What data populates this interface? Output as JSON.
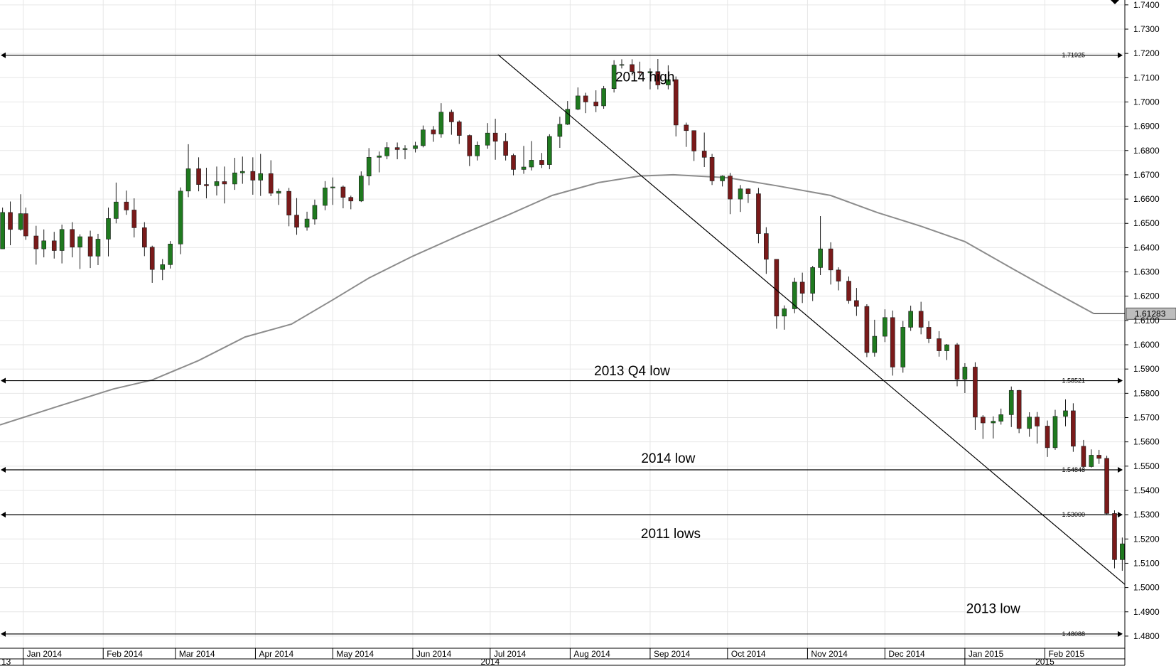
{
  "chart_data": {
    "type": "candlestick",
    "y_axis": {
      "min": 1.475,
      "max": 1.742,
      "position": "right",
      "ticks": [
        "1.7400",
        "1.7300",
        "1.7200",
        "1.7100",
        "1.7000",
        "1.6900",
        "1.6800",
        "1.6700",
        "1.6600",
        "1.6500",
        "1.6400",
        "1.6300",
        "1.6200",
        "1.6100",
        "1.6000",
        "1.5900",
        "1.5800",
        "1.5700",
        "1.5600",
        "1.5500",
        "1.5400",
        "1.5300",
        "1.5200",
        "1.5100",
        "1.5000",
        "1.4900",
        "1.4800"
      ]
    },
    "x_axis": {
      "start": "2013-12-23",
      "end": "2015-03-04",
      "month_labels": [
        {
          "label": "Jan 2014",
          "date": "2014-01-01"
        },
        {
          "label": "Feb 2014",
          "date": "2014-02-01"
        },
        {
          "label": "Mar 2014",
          "date": "2014-03-01"
        },
        {
          "label": "Apr 2014",
          "date": "2014-04-01"
        },
        {
          "label": "May 2014",
          "date": "2014-05-01"
        },
        {
          "label": "Jun 2014",
          "date": "2014-06-01"
        },
        {
          "label": "Jul 2014",
          "date": "2014-07-01"
        },
        {
          "label": "Aug 2014",
          "date": "2014-08-01"
        },
        {
          "label": "Sep 2014",
          "date": "2014-09-01"
        },
        {
          "label": "Oct 2014",
          "date": "2014-10-01"
        },
        {
          "label": "Nov 2014",
          "date": "2014-11-01"
        },
        {
          "label": "Dec 2014",
          "date": "2014-12-01"
        },
        {
          "label": "Jan 2015",
          "date": "2015-01-01"
        },
        {
          "label": "Feb 2015",
          "date": "2015-02-01"
        }
      ],
      "year_labels": [
        {
          "label": "2014",
          "date": "2014-07-01"
        },
        {
          "label": "2015",
          "date": "2015-02-01"
        }
      ],
      "left_edge_label": "13"
    },
    "levels": [
      {
        "value": 1.71925,
        "tag": "1.71925",
        "annotation": "2014 high",
        "annotation_date": "2014-08-30",
        "annotation_y": 1.7105
      },
      {
        "value": 1.58521,
        "tag": "1.58521",
        "annotation": "2013 Q4 low",
        "annotation_date": "2014-08-25",
        "annotation_y": 1.5895
      },
      {
        "value": 1.54848,
        "tag": "1.54848",
        "annotation": "2014 low",
        "annotation_date": "2014-09-08",
        "annotation_y": 1.5535
      },
      {
        "value": 1.53,
        "tag": "1.53000",
        "annotation": "2011 lows",
        "annotation_date": "2014-09-09",
        "annotation_y": 1.5225
      },
      {
        "value": 1.48088,
        "tag": "1.48088",
        "annotation": "2013 low",
        "annotation_date": "2015-01-12",
        "annotation_y": 1.4915
      }
    ],
    "trendline": {
      "start": {
        "date": "2014-07-04",
        "value": 1.7195
      },
      "end": {
        "date": "2015-03-04",
        "value": 1.5013
      }
    },
    "moving_average": {
      "points": [
        [
          "2013-12-23",
          1.567
        ],
        [
          "2014-01-15",
          1.5748
        ],
        [
          "2014-02-05",
          1.5818
        ],
        [
          "2014-02-20",
          1.5855
        ],
        [
          "2014-03-10",
          1.5935
        ],
        [
          "2014-03-28",
          1.6032
        ],
        [
          "2014-04-15",
          1.6085
        ],
        [
          "2014-05-01",
          1.6185
        ],
        [
          "2014-05-15",
          1.6275
        ],
        [
          "2014-06-01",
          1.6365
        ],
        [
          "2014-06-20",
          1.6455
        ],
        [
          "2014-07-08",
          1.6535
        ],
        [
          "2014-07-25",
          1.6615
        ],
        [
          "2014-08-12",
          1.6668
        ],
        [
          "2014-08-28",
          1.6695
        ],
        [
          "2014-09-10",
          1.67
        ],
        [
          "2014-10-01",
          1.6688
        ],
        [
          "2014-10-20",
          1.6655
        ],
        [
          "2014-11-10",
          1.6615
        ],
        [
          "2014-11-28",
          1.6545
        ],
        [
          "2014-12-15",
          1.6488
        ],
        [
          "2015-01-01",
          1.6425
        ],
        [
          "2015-01-20",
          1.631
        ],
        [
          "2015-02-05",
          1.6215
        ],
        [
          "2015-02-20",
          1.6128
        ]
      ],
      "last_value_tag": "1.61283"
    },
    "candles": [
      [
        "2013-12-24",
        1.6395,
        1.6545,
        1.6395,
        1.6565
      ],
      [
        "2013-12-27",
        1.6545,
        1.6475,
        1.641,
        1.659
      ],
      [
        "2013-12-31",
        1.6475,
        1.654,
        1.647,
        1.662
      ],
      [
        "2014-01-02",
        1.654,
        1.6448,
        1.6432,
        1.6565
      ],
      [
        "2014-01-06",
        1.6448,
        1.6395,
        1.633,
        1.649
      ],
      [
        "2014-01-09",
        1.6395,
        1.6428,
        1.636,
        1.6475
      ],
      [
        "2014-01-13",
        1.6428,
        1.6388,
        1.6355,
        1.6465
      ],
      [
        "2014-01-16",
        1.6388,
        1.6475,
        1.6335,
        1.6495
      ],
      [
        "2014-01-20",
        1.6475,
        1.6402,
        1.636,
        1.6505
      ],
      [
        "2014-01-23",
        1.6402,
        1.6445,
        1.6312,
        1.6455
      ],
      [
        "2014-01-27",
        1.6445,
        1.6365,
        1.6316,
        1.647
      ],
      [
        "2014-01-30",
        1.6365,
        1.6435,
        1.6328,
        1.6457
      ],
      [
        "2014-02-03",
        1.6435,
        1.652,
        1.6364,
        1.6565
      ],
      [
        "2014-02-06",
        1.652,
        1.6588,
        1.65,
        1.6668
      ],
      [
        "2014-02-10",
        1.6588,
        1.6555,
        1.6535,
        1.6635
      ],
      [
        "2014-02-13",
        1.6555,
        1.6482,
        1.6442,
        1.6603
      ],
      [
        "2014-02-17",
        1.6482,
        1.6402,
        1.6365,
        1.6505
      ],
      [
        "2014-02-20",
        1.6402,
        1.631,
        1.6255,
        1.6408
      ],
      [
        "2014-02-24",
        1.631,
        1.633,
        1.6266,
        1.6353
      ],
      [
        "2014-02-27",
        1.633,
        1.6415,
        1.6314,
        1.6427
      ],
      [
        "2014-03-03",
        1.6415,
        1.6633,
        1.6373,
        1.6648
      ],
      [
        "2014-03-06",
        1.6633,
        1.6725,
        1.6608,
        1.6826
      ],
      [
        "2014-03-10",
        1.6725,
        1.666,
        1.6632,
        1.6772
      ],
      [
        "2014-03-13",
        1.666,
        1.6655,
        1.6603,
        1.6729
      ],
      [
        "2014-03-17",
        1.6655,
        1.6672,
        1.6615,
        1.6734
      ],
      [
        "2014-03-20",
        1.6672,
        1.6662,
        1.6582,
        1.6734
      ],
      [
        "2014-03-24",
        1.6662,
        1.6708,
        1.6638,
        1.677
      ],
      [
        "2014-03-27",
        1.6708,
        1.6714,
        1.6663,
        1.6775
      ],
      [
        "2014-03-31",
        1.6714,
        1.6678,
        1.6618,
        1.6772
      ],
      [
        "2014-04-03",
        1.6678,
        1.6705,
        1.6613,
        1.6786
      ],
      [
        "2014-04-07",
        1.6705,
        1.6624,
        1.6612,
        1.676
      ],
      [
        "2014-04-10",
        1.6624,
        1.6632,
        1.6576,
        1.6643
      ],
      [
        "2014-04-14",
        1.6632,
        1.6534,
        1.6488,
        1.6646
      ],
      [
        "2014-04-17",
        1.6534,
        1.6484,
        1.6453,
        1.6604
      ],
      [
        "2014-04-21",
        1.6484,
        1.6518,
        1.647,
        1.6548
      ],
      [
        "2014-04-24",
        1.6518,
        1.6574,
        1.6495,
        1.6598
      ],
      [
        "2014-04-28",
        1.6574,
        1.6646,
        1.6554,
        1.6674
      ],
      [
        "2014-05-01",
        1.6646,
        1.665,
        1.6576,
        1.6689
      ],
      [
        "2014-05-05",
        1.665,
        1.6607,
        1.6562,
        1.6656
      ],
      [
        "2014-05-08",
        1.6607,
        1.6592,
        1.6558,
        1.6614
      ],
      [
        "2014-05-12",
        1.6592,
        1.6695,
        1.6588,
        1.6714
      ],
      [
        "2014-05-15",
        1.6695,
        1.6772,
        1.6657,
        1.681
      ],
      [
        "2014-05-19",
        1.6772,
        1.6778,
        1.671,
        1.6796
      ],
      [
        "2014-05-22",
        1.6778,
        1.6812,
        1.6764,
        1.6834
      ],
      [
        "2014-05-26",
        1.6812,
        1.6804,
        1.6764,
        1.6833
      ],
      [
        "2014-05-29",
        1.6804,
        1.6808,
        1.6764,
        1.6822
      ],
      [
        "2014-06-02",
        1.6808,
        1.682,
        1.6792,
        1.6836
      ],
      [
        "2014-06-05",
        1.682,
        1.6885,
        1.6813,
        1.6903
      ],
      [
        "2014-06-09",
        1.6885,
        1.6868,
        1.6836,
        1.6901
      ],
      [
        "2014-06-12",
        1.6868,
        1.6958,
        1.6853,
        1.6995
      ],
      [
        "2014-06-16",
        1.6958,
        1.6918,
        1.6865,
        1.6968
      ],
      [
        "2014-06-19",
        1.6918,
        1.6862,
        1.6827,
        1.6924
      ],
      [
        "2014-06-23",
        1.6862,
        1.6778,
        1.6736,
        1.6866
      ],
      [
        "2014-06-26",
        1.6778,
        1.6822,
        1.6759,
        1.6837
      ],
      [
        "2014-06-30",
        1.6822,
        1.6872,
        1.6807,
        1.6913
      ],
      [
        "2014-07-03",
        1.6872,
        1.6838,
        1.6762,
        1.6931
      ],
      [
        "2014-07-07",
        1.6838,
        1.678,
        1.6759,
        1.6872
      ],
      [
        "2014-07-10",
        1.678,
        1.6722,
        1.6698,
        1.6787
      ],
      [
        "2014-07-14",
        1.6722,
        1.6732,
        1.6704,
        1.6819
      ],
      [
        "2014-07-17",
        1.6732,
        1.676,
        1.6718,
        1.6839
      ],
      [
        "2014-07-21",
        1.676,
        1.6742,
        1.6728,
        1.679
      ],
      [
        "2014-07-24",
        1.6742,
        1.6858,
        1.6723,
        1.6867
      ],
      [
        "2014-07-28",
        1.6858,
        1.6908,
        1.6811,
        1.6939
      ],
      [
        "2014-07-31",
        1.6908,
        1.697,
        1.6905,
        1.7004
      ],
      [
        "2014-08-04",
        1.697,
        1.7025,
        1.6966,
        1.706
      ],
      [
        "2014-08-07",
        1.7025,
        1.7,
        1.6954,
        1.7038
      ],
      [
        "2014-08-11",
        1.7,
        1.6984,
        1.6958,
        1.7048
      ],
      [
        "2014-08-14",
        1.6984,
        1.7055,
        1.6972,
        1.7066
      ],
      [
        "2014-08-18",
        1.7055,
        1.7152,
        1.7039,
        1.7172
      ],
      [
        "2014-08-21",
        1.7152,
        1.7154,
        1.7138,
        1.7176
      ],
      [
        "2014-08-25",
        1.7154,
        1.7125,
        1.7109,
        1.7176
      ],
      [
        "2014-08-28",
        1.7125,
        1.712,
        1.7103,
        1.7166
      ],
      [
        "2014-09-01",
        1.712,
        1.7125,
        1.7052,
        1.7138
      ],
      [
        "2014-09-04",
        1.7125,
        1.707,
        1.7052,
        1.7177
      ],
      [
        "2014-09-08",
        1.707,
        1.7092,
        1.7052,
        1.7151
      ],
      [
        "2014-09-11",
        1.7092,
        1.6905,
        1.6858,
        1.7105
      ],
      [
        "2014-09-15",
        1.6905,
        1.6882,
        1.6815,
        1.6915
      ],
      [
        "2014-09-18",
        1.6882,
        1.6798,
        1.6757,
        1.6883
      ],
      [
        "2014-09-22",
        1.6798,
        1.6772,
        1.6732,
        1.6874
      ],
      [
        "2014-09-25",
        1.6772,
        1.6675,
        1.6658,
        1.6786
      ],
      [
        "2014-09-29",
        1.6675,
        1.6695,
        1.6652,
        1.6698
      ],
      [
        "2014-10-02",
        1.6695,
        1.66,
        1.6538,
        1.6708
      ],
      [
        "2014-10-06",
        1.66,
        1.6642,
        1.6547,
        1.6658
      ],
      [
        "2014-10-09",
        1.6642,
        1.6622,
        1.6584,
        1.6644
      ],
      [
        "2014-10-13",
        1.6622,
        1.6458,
        1.6418,
        1.6646
      ],
      [
        "2014-10-16",
        1.6458,
        1.6352,
        1.6292,
        1.6484
      ],
      [
        "2014-10-20",
        1.6352,
        1.6118,
        1.6066,
        1.6345
      ],
      [
        "2014-10-23",
        1.6118,
        1.6148,
        1.6062,
        1.6162
      ],
      [
        "2014-10-27",
        1.6148,
        1.6258,
        1.613,
        1.6276
      ],
      [
        "2014-10-30",
        1.6258,
        1.6212,
        1.6172,
        1.6297
      ],
      [
        "2014-11-03",
        1.6212,
        1.6318,
        1.618,
        1.6325
      ],
      [
        "2014-11-06",
        1.6318,
        1.6395,
        1.6287,
        1.653
      ],
      [
        "2014-11-10",
        1.6395,
        1.6308,
        1.6248,
        1.6422
      ],
      [
        "2014-11-13",
        1.6308,
        1.6262,
        1.6224,
        1.6319
      ],
      [
        "2014-11-17",
        1.6262,
        1.6182,
        1.6169,
        1.6281
      ],
      [
        "2014-11-20",
        1.6182,
        1.6158,
        1.6119,
        1.6234
      ],
      [
        "2014-11-24",
        1.6158,
        1.5968,
        1.5949,
        1.6167
      ],
      [
        "2014-11-27",
        1.5968,
        1.6035,
        1.5951,
        1.6103
      ],
      [
        "2014-12-01",
        1.6035,
        1.6112,
        1.6011,
        1.6146
      ],
      [
        "2014-12-04",
        1.6112,
        1.5908,
        1.5873,
        1.6141
      ],
      [
        "2014-12-08",
        1.5908,
        1.6072,
        1.5885,
        1.6098
      ],
      [
        "2014-12-11",
        1.6072,
        1.6138,
        1.6057,
        1.6161
      ],
      [
        "2014-12-15",
        1.6138,
        1.6072,
        1.6043,
        1.6177
      ],
      [
        "2014-12-18",
        1.6072,
        1.6025,
        1.6007,
        1.6097
      ],
      [
        "2014-12-22",
        1.6025,
        1.5975,
        1.5951,
        1.6056
      ],
      [
        "2014-12-25",
        1.5975,
        1.6,
        1.5937,
        1.6003
      ],
      [
        "2014-12-29",
        1.6,
        1.5858,
        1.5829,
        1.6007
      ],
      [
        "2015-01-01",
        1.5858,
        1.5908,
        1.5801,
        1.5924
      ],
      [
        "2015-01-05",
        1.5908,
        1.5702,
        1.5649,
        1.5928
      ],
      [
        "2015-01-08",
        1.5702,
        1.5678,
        1.5612,
        1.571
      ],
      [
        "2015-01-12",
        1.5678,
        1.5685,
        1.5614,
        1.5705
      ],
      [
        "2015-01-15",
        1.5685,
        1.5712,
        1.5671,
        1.5737
      ],
      [
        "2015-01-19",
        1.5712,
        1.5812,
        1.5661,
        1.5828
      ],
      [
        "2015-01-22",
        1.5812,
        1.5655,
        1.5636,
        1.5814
      ],
      [
        "2015-01-26",
        1.5655,
        1.5702,
        1.5621,
        1.5722
      ],
      [
        "2015-01-29",
        1.5702,
        1.5665,
        1.5593,
        1.5723
      ],
      [
        "2015-02-02",
        1.5665,
        1.5576,
        1.5538,
        1.5688
      ],
      [
        "2015-02-05",
        1.5576,
        1.5705,
        1.5567,
        1.5732
      ],
      [
        "2015-02-09",
        1.5705,
        1.5728,
        1.5664,
        1.5775
      ],
      [
        "2015-02-12",
        1.5728,
        1.5582,
        1.5559,
        1.5759
      ],
      [
        "2015-02-16",
        1.5582,
        1.5498,
        1.5493,
        1.5608
      ],
      [
        "2015-02-19",
        1.5498,
        1.5545,
        1.5494,
        1.5569
      ],
      [
        "2015-02-22",
        1.5545,
        1.5532,
        1.5509,
        1.5567
      ],
      [
        "2015-02-25",
        1.5532,
        1.5305,
        1.5299,
        1.5543
      ],
      [
        "2015-02-28",
        1.5305,
        1.5115,
        1.5079,
        1.5318
      ],
      [
        "2015-03-03",
        1.5115,
        1.518,
        1.5069,
        1.5206
      ]
    ]
  }
}
